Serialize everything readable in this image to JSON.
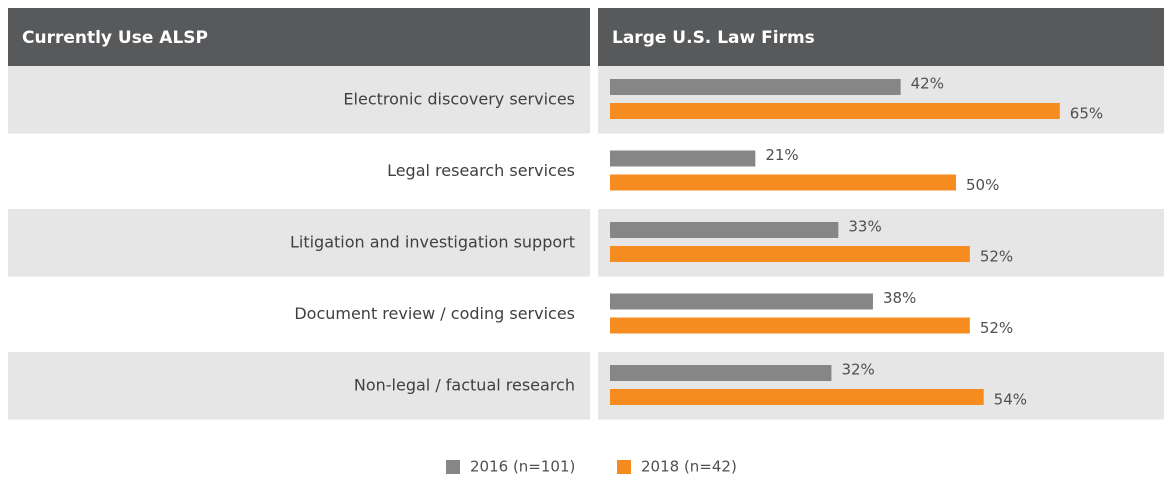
{
  "chart_data": {
    "type": "bar",
    "orientation": "horizontal",
    "category_header": "Currently Use ALSP",
    "title": "Large U.S. Law Firms",
    "categories": [
      "Electronic discovery services",
      "Legal research services",
      "Litigation and investigation support",
      "Document review / coding services",
      "Non-legal / factual research"
    ],
    "series": [
      {
        "name": "2016 (n=101)",
        "color": "#868686",
        "values": [
          42,
          21,
          33,
          38,
          32
        ],
        "value_labels": [
          "42%",
          "21%",
          "33%",
          "38%",
          "32%"
        ]
      },
      {
        "name": "2018 (n=42)",
        "color": "#f68b1f",
        "values": [
          65,
          50,
          52,
          52,
          54
        ],
        "value_labels": [
          "65%",
          "50%",
          "52%",
          "52%",
          "54%"
        ]
      }
    ],
    "legend": "bottom"
  }
}
